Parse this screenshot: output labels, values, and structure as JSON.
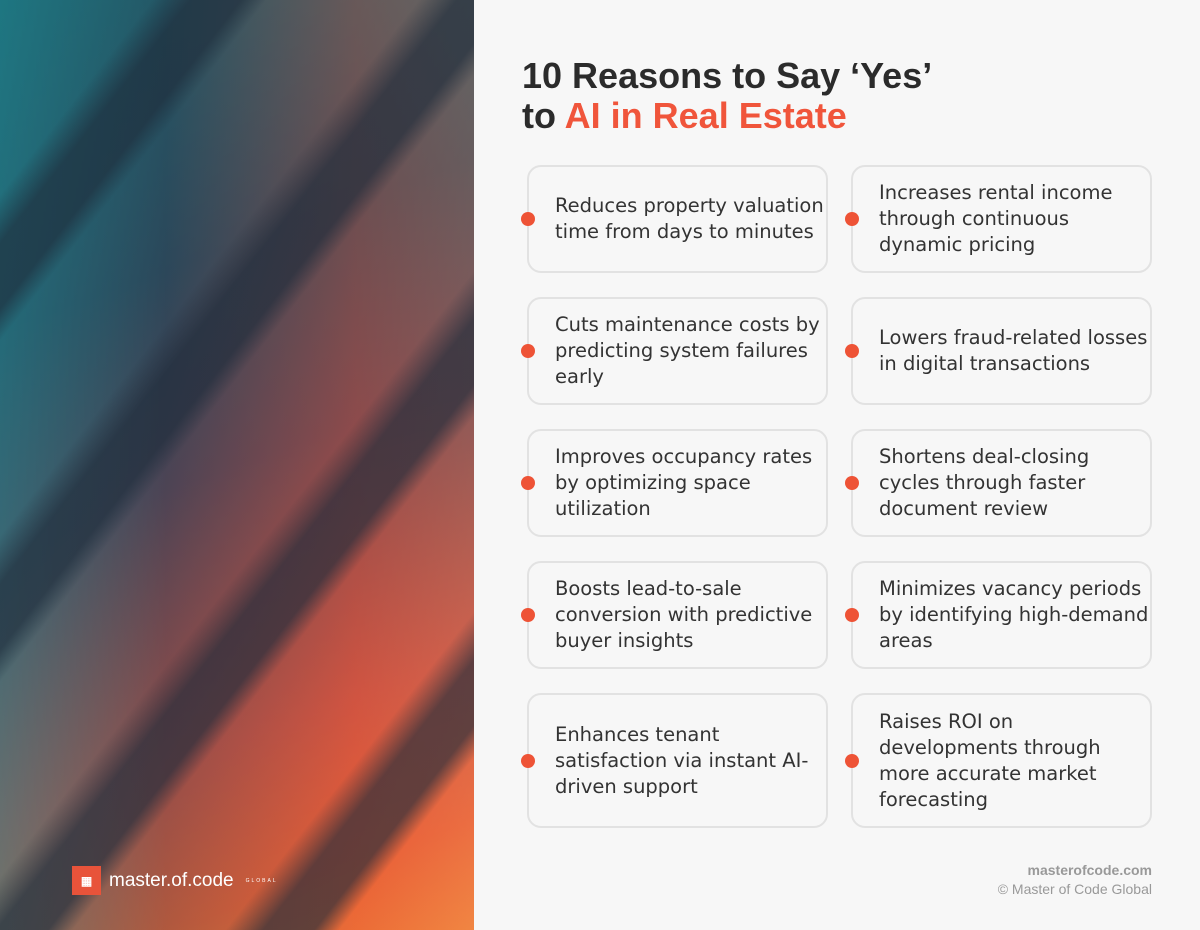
{
  "brand": {
    "logo_text": "master.of.code",
    "logo_suffix": "GLOBAL",
    "accent": "#f0553b"
  },
  "title": {
    "line1": "10 Reasons to Say ‘Yes’",
    "line2_prefix": "to ",
    "line2_accent": "AI in Real Estate"
  },
  "reasons": [
    "Reduces property valuation time from days to minutes",
    "Increases rental income through continuous dynamic pricing",
    "Cuts maintenance costs by predicting system failures early",
    "Lowers fraud-related losses in digital transactions",
    "Improves occupancy rates by optimizing space utilization",
    "Shortens deal-closing cycles through faster document review",
    "Boosts lead-to-sale conversion with predictive buyer insights",
    "Minimizes vacancy periods by identifying high-demand areas",
    "Enhances tenant satisfaction via instant AI-driven support",
    "Raises ROI on developments through more accurate market forecasting"
  ],
  "footer": {
    "site": "masterofcode.com",
    "copyright": "© Master of Code Global"
  }
}
